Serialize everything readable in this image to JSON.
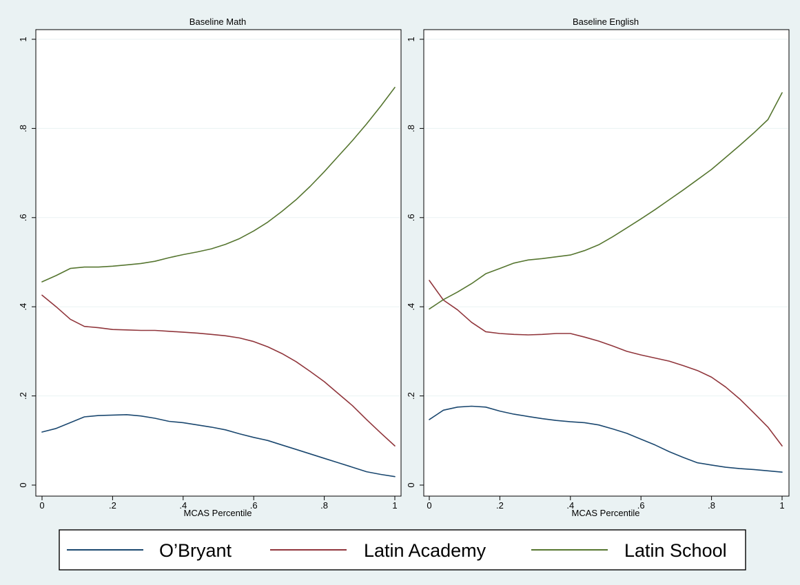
{
  "chart_data": [
    {
      "type": "line",
      "title": "Baseline Math",
      "xlabel": "MCAS Percentile",
      "ylabel": "",
      "xlim": [
        0,
        1
      ],
      "ylim": [
        0,
        1
      ],
      "xticks": [
        0,
        0.2,
        0.4,
        0.6,
        0.8,
        1
      ],
      "xtick_labels": [
        "0",
        ".2",
        ".4",
        ".6",
        ".8",
        "1"
      ],
      "yticks": [
        0,
        0.2,
        0.4,
        0.6,
        0.8,
        1
      ],
      "ytick_labels": [
        "0",
        ".2",
        ".4",
        ".6",
        ".8",
        "1"
      ],
      "grid": "horizontal",
      "series": [
        {
          "name": "O’Bryant",
          "color": "#1a476f",
          "x": [
            0,
            0.04,
            0.08,
            0.12,
            0.16,
            0.2,
            0.24,
            0.28,
            0.32,
            0.36,
            0.4,
            0.44,
            0.48,
            0.52,
            0.56,
            0.6,
            0.64,
            0.68,
            0.72,
            0.76,
            0.8,
            0.84,
            0.88,
            0.92,
            0.96,
            1
          ],
          "y": [
            0.119,
            0.127,
            0.14,
            0.153,
            0.156,
            0.157,
            0.158,
            0.155,
            0.15,
            0.143,
            0.14,
            0.135,
            0.13,
            0.124,
            0.115,
            0.107,
            0.1,
            0.09,
            0.08,
            0.07,
            0.06,
            0.05,
            0.04,
            0.03,
            0.024,
            0.019
          ]
        },
        {
          "name": "Latin Academy",
          "color": "#90353b",
          "x": [
            0,
            0.04,
            0.08,
            0.12,
            0.16,
            0.2,
            0.24,
            0.28,
            0.32,
            0.36,
            0.4,
            0.44,
            0.48,
            0.52,
            0.56,
            0.6,
            0.64,
            0.68,
            0.72,
            0.76,
            0.8,
            0.84,
            0.88,
            0.92,
            0.96,
            1
          ],
          "y": [
            0.426,
            0.4,
            0.372,
            0.356,
            0.353,
            0.349,
            0.348,
            0.347,
            0.347,
            0.345,
            0.343,
            0.341,
            0.338,
            0.335,
            0.33,
            0.322,
            0.31,
            0.295,
            0.277,
            0.255,
            0.232,
            0.205,
            0.178,
            0.147,
            0.117,
            0.088
          ]
        },
        {
          "name": "Latin School",
          "color": "#55752f",
          "x": [
            0,
            0.04,
            0.08,
            0.12,
            0.16,
            0.2,
            0.24,
            0.28,
            0.32,
            0.36,
            0.4,
            0.44,
            0.48,
            0.52,
            0.56,
            0.6,
            0.64,
            0.68,
            0.72,
            0.76,
            0.8,
            0.84,
            0.88,
            0.92,
            0.96,
            1
          ],
          "y": [
            0.456,
            0.47,
            0.486,
            0.489,
            0.489,
            0.491,
            0.494,
            0.497,
            0.502,
            0.51,
            0.517,
            0.523,
            0.53,
            0.54,
            0.553,
            0.57,
            0.59,
            0.614,
            0.64,
            0.67,
            0.703,
            0.738,
            0.773,
            0.81,
            0.85,
            0.892
          ]
        }
      ]
    },
    {
      "type": "line",
      "title": "Baseline English",
      "xlabel": "MCAS Percentile",
      "ylabel": "",
      "xlim": [
        0,
        1
      ],
      "ylim": [
        0,
        1
      ],
      "xticks": [
        0,
        0.2,
        0.4,
        0.6,
        0.8,
        1
      ],
      "xtick_labels": [
        "0",
        ".2",
        ".4",
        ".6",
        ".8",
        "1"
      ],
      "yticks": [
        0,
        0.2,
        0.4,
        0.6,
        0.8,
        1
      ],
      "ytick_labels": [
        "0",
        ".2",
        ".4",
        ".6",
        ".8",
        "1"
      ],
      "grid": "horizontal",
      "series": [
        {
          "name": "O’Bryant",
          "color": "#1a476f",
          "x": [
            0,
            0.04,
            0.08,
            0.12,
            0.16,
            0.2,
            0.24,
            0.28,
            0.32,
            0.36,
            0.4,
            0.44,
            0.48,
            0.52,
            0.56,
            0.6,
            0.64,
            0.68,
            0.72,
            0.76,
            0.8,
            0.84,
            0.88,
            0.92,
            0.96,
            1
          ],
          "y": [
            0.147,
            0.168,
            0.175,
            0.177,
            0.175,
            0.166,
            0.159,
            0.154,
            0.149,
            0.145,
            0.142,
            0.14,
            0.135,
            0.126,
            0.116,
            0.103,
            0.09,
            0.075,
            0.062,
            0.05,
            0.045,
            0.04,
            0.037,
            0.035,
            0.032,
            0.029
          ]
        },
        {
          "name": "Latin Academy",
          "color": "#90353b",
          "x": [
            0,
            0.04,
            0.08,
            0.12,
            0.16,
            0.2,
            0.24,
            0.28,
            0.32,
            0.36,
            0.4,
            0.44,
            0.48,
            0.52,
            0.56,
            0.6,
            0.64,
            0.68,
            0.72,
            0.76,
            0.8,
            0.84,
            0.88,
            0.92,
            0.96,
            1
          ],
          "y": [
            0.459,
            0.415,
            0.393,
            0.365,
            0.344,
            0.34,
            0.338,
            0.337,
            0.338,
            0.34,
            0.34,
            0.332,
            0.323,
            0.312,
            0.3,
            0.292,
            0.285,
            0.278,
            0.268,
            0.257,
            0.242,
            0.22,
            0.193,
            0.162,
            0.13,
            0.088
          ]
        },
        {
          "name": "Latin School",
          "color": "#55752f",
          "x": [
            0,
            0.04,
            0.08,
            0.12,
            0.16,
            0.2,
            0.24,
            0.28,
            0.32,
            0.36,
            0.4,
            0.44,
            0.48,
            0.52,
            0.56,
            0.6,
            0.64,
            0.68,
            0.72,
            0.76,
            0.8,
            0.84,
            0.88,
            0.92,
            0.96,
            1
          ],
          "y": [
            0.395,
            0.416,
            0.433,
            0.452,
            0.474,
            0.486,
            0.498,
            0.505,
            0.508,
            0.512,
            0.516,
            0.526,
            0.539,
            0.557,
            0.577,
            0.597,
            0.618,
            0.64,
            0.662,
            0.685,
            0.708,
            0.735,
            0.762,
            0.79,
            0.82,
            0.88
          ]
        }
      ]
    }
  ],
  "legend": {
    "placement": "bottom",
    "items": [
      {
        "label": "O’Bryant",
        "color": "#1a476f"
      },
      {
        "label": "Latin Academy",
        "color": "#90353b"
      },
      {
        "label": "Latin School",
        "color": "#55752f"
      }
    ]
  },
  "colors": {
    "background": "#eaf2f3",
    "plot_background": "#ffffff",
    "grid": "#eaf2f3"
  }
}
